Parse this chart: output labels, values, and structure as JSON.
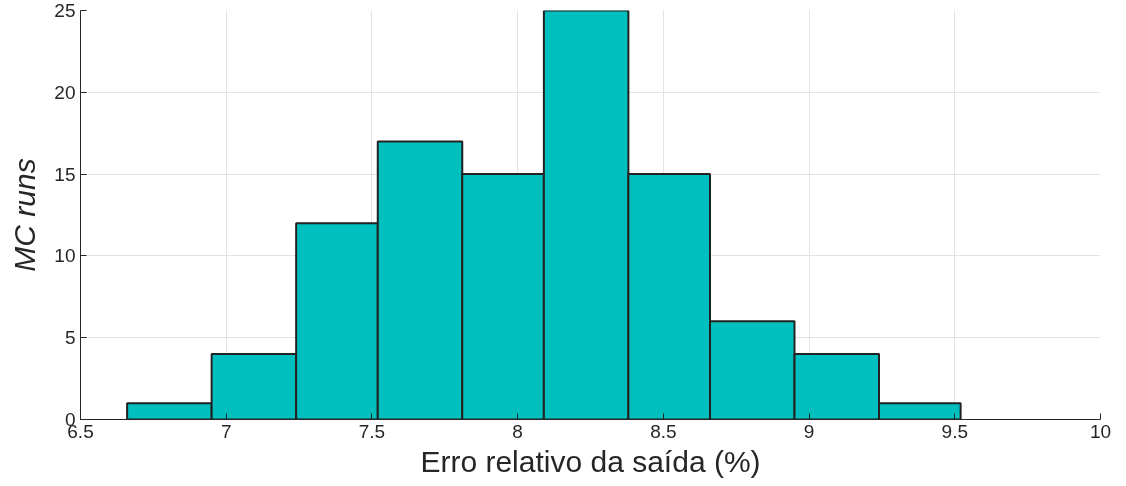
{
  "chart_data": {
    "type": "histogram",
    "xlabel": "Erro relativo da saída (%)",
    "ylabel": "MC runs",
    "bins": [
      6.66,
      6.95,
      7.24,
      7.52,
      7.81,
      8.09,
      8.38,
      8.66,
      8.95,
      9.24,
      9.52
    ],
    "values": [
      1,
      4,
      12,
      17,
      15,
      25,
      15,
      6,
      4,
      1
    ],
    "color": "#00bfbf",
    "xlim": [
      6.5,
      10
    ],
    "xticks": [
      6.5,
      7,
      7.5,
      8,
      8.5,
      9,
      9.5,
      10
    ],
    "ylim": [
      0,
      25
    ],
    "yticks": [
      0,
      5,
      10,
      15,
      20,
      25
    ],
    "grid": true
  }
}
